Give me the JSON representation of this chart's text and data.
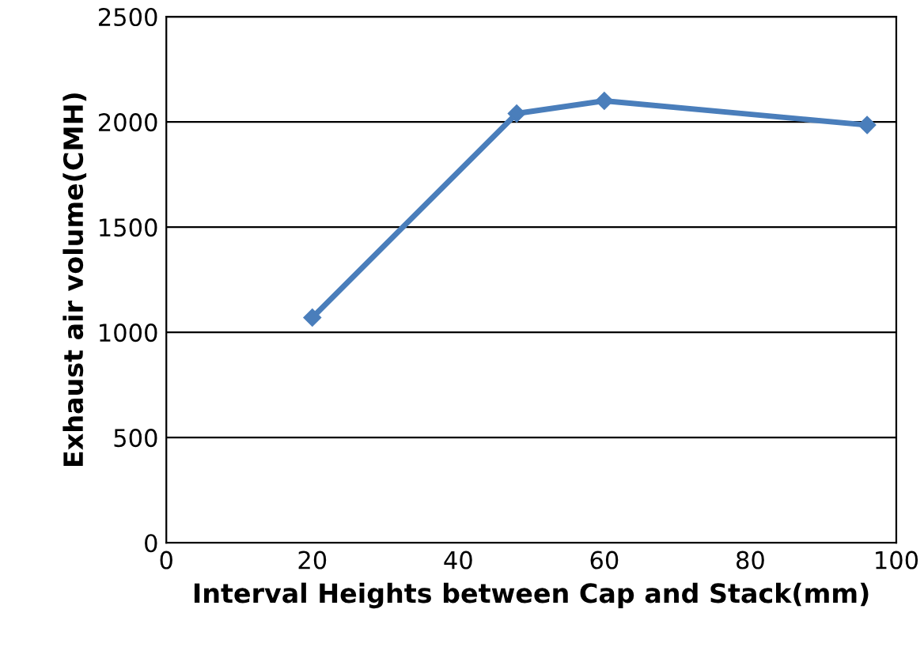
{
  "chart_data": {
    "type": "line",
    "xlabel": "Interval Heights between Cap and Stack(mm)",
    "ylabel": "Exhaust air volume(CMH)",
    "series": [
      {
        "color": "#4a7ebb",
        "x": [
          20,
          48,
          60,
          96
        ],
        "values": [
          1070,
          2040,
          2100,
          1985
        ]
      }
    ],
    "xlim": [
      0,
      100
    ],
    "xticks": [
      0,
      20,
      40,
      60,
      80,
      100
    ],
    "ylim": [
      0,
      2500
    ],
    "yticks": [
      0,
      500,
      1000,
      1500,
      2000,
      2500
    ],
    "grid": "y",
    "marker": "diamond",
    "line_style": "solid"
  }
}
